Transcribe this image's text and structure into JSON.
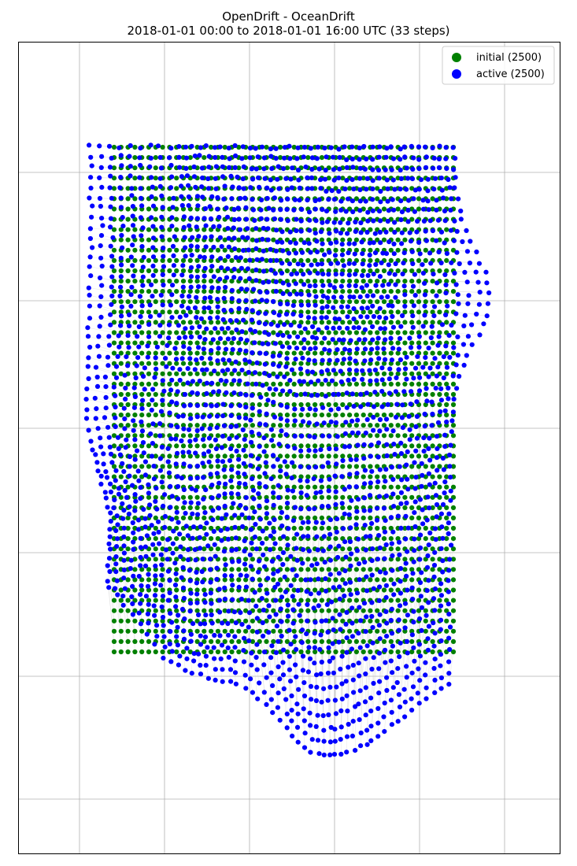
{
  "chart_data": {
    "type": "scatter",
    "title": "OpenDrift - OceanDrift",
    "subtitle": "2018-01-01 00:00 to 2018-01-01 16:00 UTC (33 steps)",
    "grid": true,
    "legend_placement": "top-right",
    "series": [
      {
        "name": "initial (2500)",
        "color": "#008000",
        "count": 2500,
        "layout": "regular 50 x 50 seeding grid"
      },
      {
        "name": "active (2500)",
        "color": "#0000ff",
        "count": 2500,
        "layout": "drifted positions after 16 h"
      }
    ],
    "trajectory_color": "#cccccc"
  }
}
